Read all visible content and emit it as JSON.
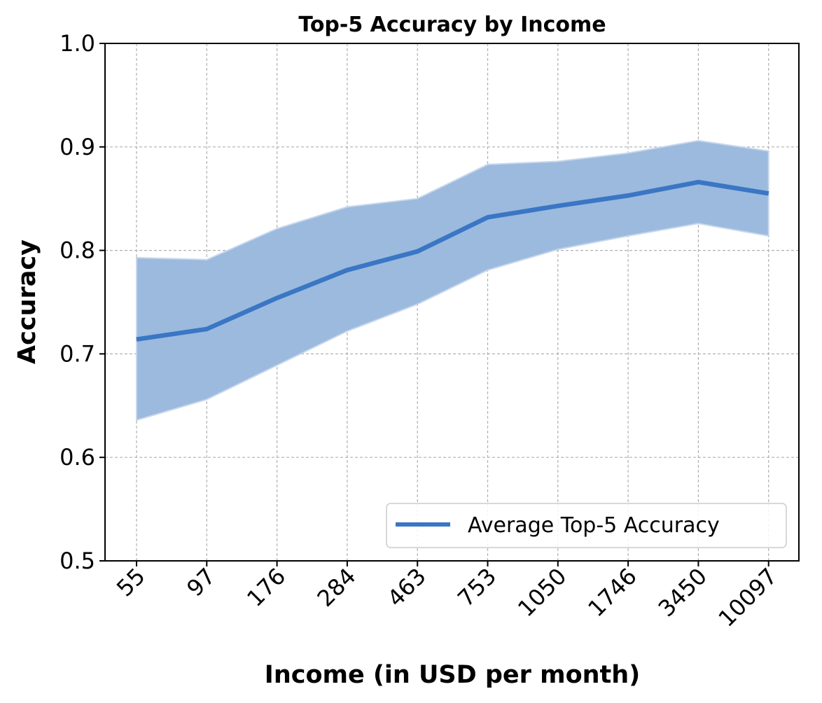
{
  "chart_data": {
    "type": "line",
    "title": "Top-5 Accuracy by Income",
    "xlabel": "Income (in USD per month)",
    "ylabel": "Accuracy",
    "categories": [
      "55",
      "97",
      "176",
      "284",
      "463",
      "753",
      "1050",
      "1746",
      "3450",
      "10097"
    ],
    "series": [
      {
        "name": "Average Top-5 Accuracy",
        "values": [
          0.714,
          0.724,
          0.754,
          0.781,
          0.799,
          0.832,
          0.843,
          0.853,
          0.866,
          0.855
        ],
        "upper": [
          0.793,
          0.791,
          0.821,
          0.842,
          0.85,
          0.883,
          0.886,
          0.894,
          0.906,
          0.896
        ],
        "lower": [
          0.636,
          0.656,
          0.689,
          0.722,
          0.748,
          0.781,
          0.801,
          0.814,
          0.826,
          0.814
        ]
      }
    ],
    "yticks": [
      "0.5",
      "0.6",
      "0.7",
      "0.8",
      "0.9",
      "1.0"
    ],
    "ylim": [
      0.5,
      1.0
    ],
    "grid": true,
    "legend_position": "lower-right",
    "colors": {
      "line": "#3a76c4",
      "band": "#9bbade",
      "band_edge": "#c6d6ec"
    }
  }
}
